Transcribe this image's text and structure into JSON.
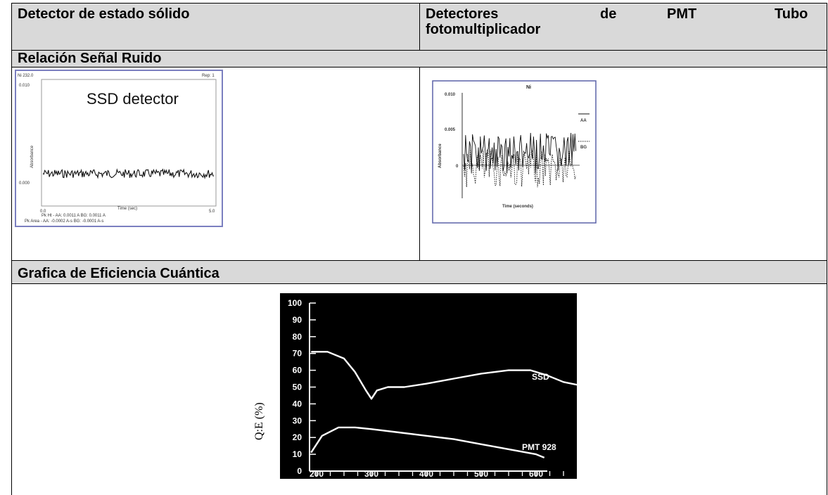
{
  "table": {
    "col1_header": "Detector de estado sólido",
    "col2_header_words": [
      "Detectores",
      "de",
      "PMT",
      "Tubo"
    ],
    "col2_header_line2": "fotomultiplicador",
    "row_signal_noise": "Relación Señal Ruido",
    "row_quantum_efficiency": "Grafica de Eficiencia Cuántica"
  },
  "ssd_plot": {
    "top_left_label": "Ni 232.0",
    "top_right_label": "Rep: 1",
    "title": "SSD detector",
    "ylabel": "Absorbance",
    "ytick_top": "0.010",
    "ytick_mid": "0.000",
    "xtick_start": "0.0",
    "xtick_end": "5.0",
    "xlabel": "Time (sec)",
    "footer_line1": "Pk Ht - AA: 0.0011 A   BG: 0.0011 A",
    "footer_line2": "Pk Area - AA: -0.0002 A-s  BG: -0.0001 A-s"
  },
  "pmt_plot": {
    "title": "Ni",
    "ylabel": "Absorbance",
    "ytick_top": "0.010",
    "ytick_mid": "0.005",
    "ytick_zero": "0",
    "legend_aa": "AA",
    "legend_bg": "BG",
    "xlabel": "Time (seconds)"
  },
  "chart_data": {
    "type": "line",
    "ylabel": "Q:E (%)",
    "yticks": [
      "100",
      "90",
      "80",
      "70",
      "60",
      "50",
      "40",
      "30",
      "20",
      "10",
      "0"
    ],
    "xticks": [
      "200",
      "300",
      "400",
      "500",
      "600"
    ],
    "xlim": [
      180,
      700
    ],
    "ylim": [
      0,
      100
    ],
    "series": [
      {
        "name": "SSD",
        "x": [
          190,
          220,
          250,
          270,
          290,
          300,
          310,
          330,
          360,
          400,
          450,
          500,
          550,
          590,
          620,
          650,
          680,
          695
        ],
        "y": [
          71,
          71,
          67,
          59,
          48,
          43,
          48,
          50,
          50,
          52,
          55,
          58,
          60,
          60,
          57,
          53,
          51,
          51
        ]
      },
      {
        "name": "PMT 928",
        "x": [
          190,
          210,
          240,
          270,
          300,
          350,
          400,
          450,
          500,
          550,
          600,
          615
        ],
        "y": [
          11,
          21,
          26,
          26,
          25,
          23,
          21,
          19,
          16,
          13,
          10,
          8
        ]
      }
    ]
  }
}
